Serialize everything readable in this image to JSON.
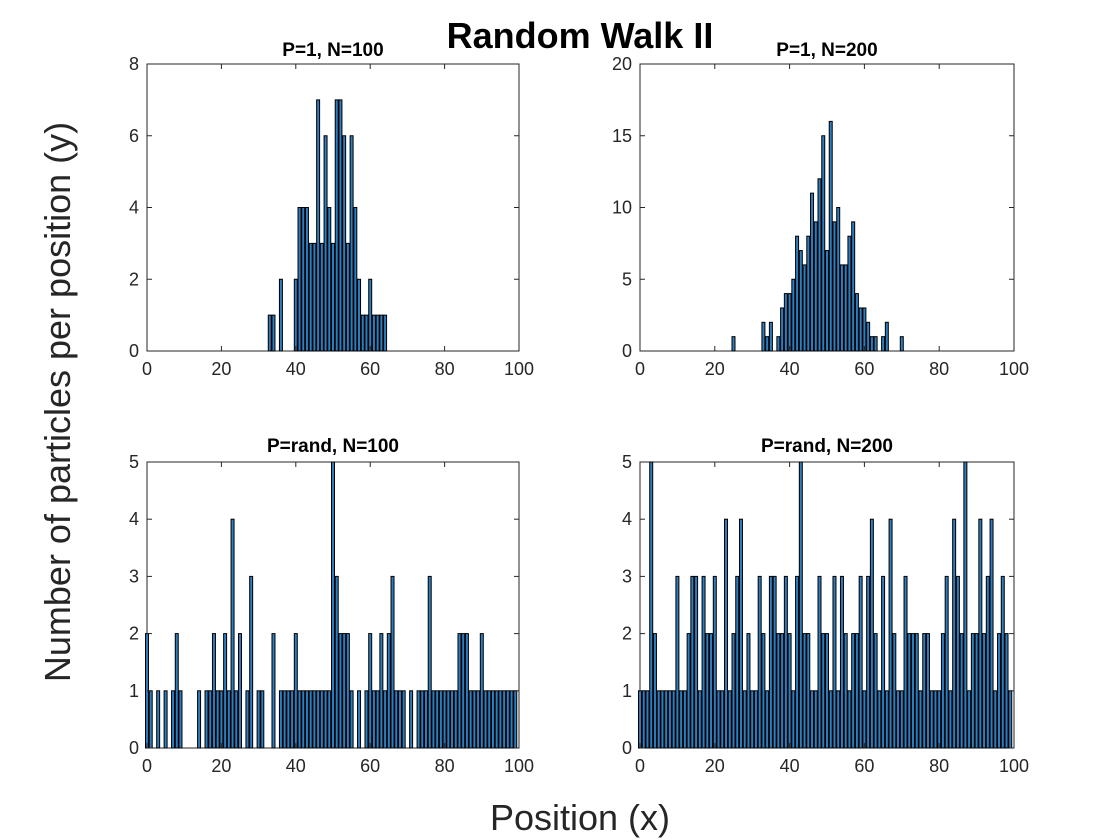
{
  "figure": {
    "title": "Random Walk II",
    "xlabel": "Position (x)",
    "ylabel": "Number of particles per position (y)"
  },
  "colors": {
    "bar_fill": "#2e7ebf",
    "bar_edge": "#000000",
    "axis": "#262626"
  },
  "chart_data": [
    {
      "type": "bar",
      "title": "P=1, N=100",
      "xlim": [
        0,
        100
      ],
      "ylim": [
        0,
        8
      ],
      "xticks": [
        0,
        20,
        40,
        60,
        80,
        100
      ],
      "yticks": [
        0,
        2,
        4,
        6,
        8
      ],
      "x": [
        33,
        34,
        36,
        40,
        41,
        42,
        43,
        44,
        45,
        46,
        47,
        48,
        49,
        50,
        51,
        52,
        53,
        54,
        55,
        56,
        57,
        58,
        59,
        60,
        61,
        62,
        63,
        64
      ],
      "values": [
        1,
        1,
        2,
        2,
        4,
        4,
        4,
        3,
        3,
        7,
        3,
        6,
        4,
        3,
        7,
        7,
        6,
        3,
        6,
        4,
        2,
        1,
        1,
        2,
        1,
        1,
        1,
        1
      ]
    },
    {
      "type": "bar",
      "title": "P=1, N=200",
      "xlim": [
        0,
        100
      ],
      "ylim": [
        0,
        20
      ],
      "xticks": [
        0,
        20,
        40,
        60,
        80,
        100
      ],
      "yticks": [
        0,
        5,
        10,
        15,
        20
      ],
      "x": [
        25,
        33,
        34,
        35,
        37,
        38,
        39,
        40,
        41,
        42,
        43,
        44,
        45,
        46,
        47,
        48,
        49,
        50,
        51,
        52,
        53,
        54,
        55,
        56,
        57,
        58,
        59,
        60,
        61,
        62,
        63,
        65,
        66,
        70
      ],
      "values": [
        1,
        2,
        1,
        2,
        1,
        3,
        4,
        4,
        5,
        8,
        7,
        6,
        8,
        11,
        9,
        12,
        15,
        7,
        16,
        9,
        10,
        6,
        6,
        8,
        9,
        4,
        3,
        3,
        2,
        1,
        1,
        1,
        2,
        1
      ]
    },
    {
      "type": "bar",
      "title": "P=rand, N=100",
      "xlim": [
        0,
        100
      ],
      "ylim": [
        0,
        5
      ],
      "xticks": [
        0,
        20,
        40,
        60,
        80,
        100
      ],
      "yticks": [
        0,
        1,
        2,
        3,
        4,
        5
      ],
      "x": [
        0,
        1,
        3,
        5,
        7,
        8,
        9,
        14,
        16,
        17,
        18,
        19,
        20,
        21,
        22,
        23,
        24,
        25,
        27,
        28,
        30,
        31,
        34,
        36,
        37,
        38,
        39,
        40,
        41,
        42,
        43,
        44,
        45,
        46,
        47,
        48,
        49,
        50,
        51,
        52,
        53,
        54,
        55,
        57,
        59,
        60,
        61,
        62,
        63,
        64,
        65,
        66,
        67,
        68,
        69,
        71,
        73,
        74,
        75,
        76,
        77,
        78,
        79,
        80,
        81,
        82,
        83,
        84,
        85,
        86,
        87,
        88,
        89,
        90,
        91,
        92,
        93,
        94,
        95,
        96,
        97,
        98,
        99
      ],
      "values": [
        2,
        1,
        1,
        1,
        1,
        2,
        1,
        1,
        1,
        1,
        2,
        1,
        1,
        2,
        1,
        4,
        1,
        2,
        1,
        3,
        1,
        1,
        2,
        1,
        1,
        1,
        1,
        2,
        1,
        1,
        1,
        1,
        1,
        1,
        1,
        1,
        1,
        5,
        3,
        2,
        2,
        2,
        1,
        1,
        1,
        2,
        1,
        1,
        2,
        1,
        2,
        3,
        1,
        1,
        1,
        1,
        1,
        1,
        1,
        3,
        1,
        1,
        1,
        1,
        1,
        1,
        1,
        2,
        2,
        2,
        1,
        1,
        1,
        2,
        1,
        1,
        1,
        1,
        1,
        1,
        1,
        1,
        1
      ]
    },
    {
      "type": "bar",
      "title": "P=rand, N=200",
      "xlim": [
        0,
        100
      ],
      "ylim": [
        0,
        5
      ],
      "xticks": [
        0,
        20,
        40,
        60,
        80,
        100
      ],
      "yticks": [
        0,
        1,
        2,
        3,
        4,
        5
      ],
      "x": [
        0,
        1,
        2,
        3,
        4,
        5,
        6,
        7,
        8,
        9,
        10,
        11,
        12,
        13,
        14,
        15,
        16,
        17,
        18,
        19,
        20,
        21,
        22,
        23,
        24,
        25,
        26,
        27,
        28,
        29,
        30,
        31,
        32,
        33,
        34,
        35,
        36,
        37,
        38,
        39,
        40,
        41,
        42,
        43,
        44,
        45,
        46,
        47,
        48,
        49,
        50,
        51,
        52,
        53,
        54,
        55,
        56,
        57,
        58,
        59,
        60,
        61,
        62,
        63,
        64,
        65,
        66,
        67,
        68,
        69,
        70,
        71,
        72,
        73,
        74,
        75,
        76,
        77,
        78,
        79,
        80,
        81,
        82,
        83,
        84,
        85,
        86,
        87,
        88,
        89,
        90,
        91,
        92,
        93,
        94,
        95,
        96,
        97,
        98,
        99
      ],
      "values": [
        1,
        1,
        1,
        5,
        2,
        1,
        1,
        1,
        1,
        1,
        3,
        1,
        1,
        2,
        3,
        3,
        1,
        3,
        2,
        2,
        3,
        1,
        1,
        4,
        1,
        2,
        3,
        4,
        1,
        2,
        1,
        1,
        3,
        2,
        1,
        3,
        3,
        2,
        2,
        3,
        2,
        1,
        3,
        5,
        2,
        2,
        1,
        1,
        3,
        2,
        2,
        1,
        3,
        1,
        3,
        2,
        1,
        2,
        2,
        3,
        1,
        3,
        4,
        2,
        1,
        3,
        1,
        4,
        2,
        1,
        1,
        3,
        2,
        2,
        2,
        1,
        2,
        2,
        1,
        1,
        1,
        2,
        3,
        1,
        4,
        3,
        2,
        5,
        1,
        2,
        2,
        4,
        2,
        3,
        4,
        1,
        2,
        3,
        2,
        1
      ]
    }
  ]
}
